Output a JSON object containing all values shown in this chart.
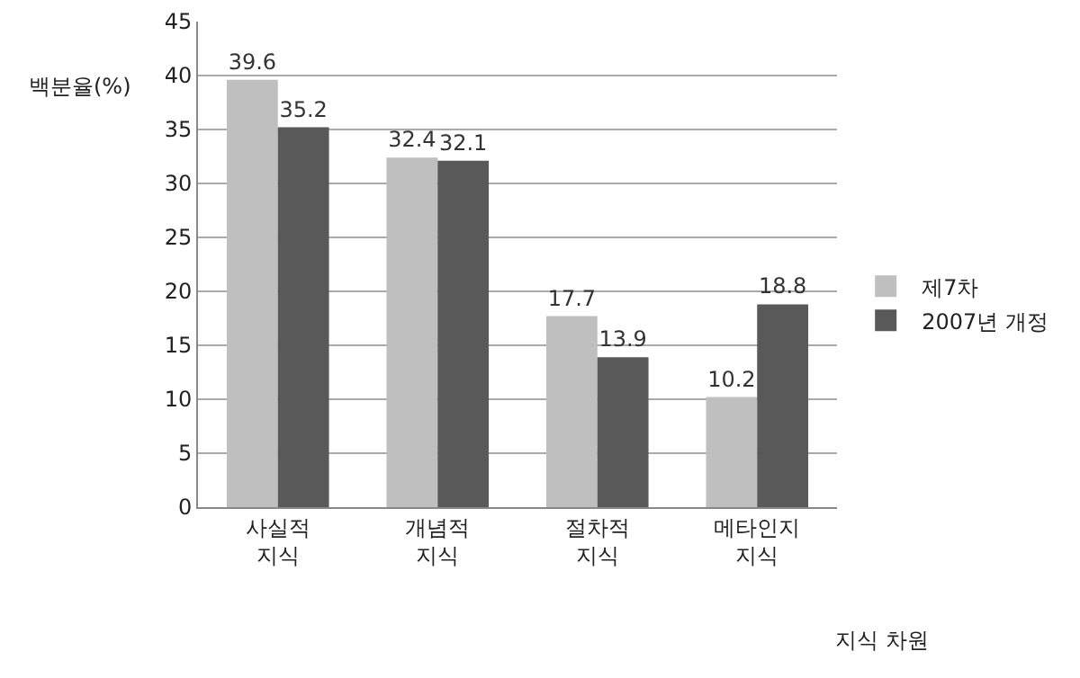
{
  "chart_data": {
    "type": "bar",
    "ylabel": "백분율(%)",
    "xlabel": "지식 차원",
    "categories": [
      "사실적\n지식",
      "개념적\n지식",
      "절차적\n지식",
      "메타인지\n지식"
    ],
    "series": [
      {
        "name": "제7차",
        "color": "#bfbfbf",
        "values": [
          39.6,
          32.4,
          17.7,
          10.2
        ]
      },
      {
        "name": "2007년 개정",
        "color": "#595959",
        "values": [
          35.2,
          32.1,
          13.9,
          18.8
        ]
      }
    ],
    "ylim": [
      0,
      45
    ],
    "yticks": [
      0,
      5,
      10,
      15,
      20,
      25,
      30,
      35,
      40,
      45
    ],
    "grid": "y",
    "legend": "right",
    "data_labels": true
  }
}
